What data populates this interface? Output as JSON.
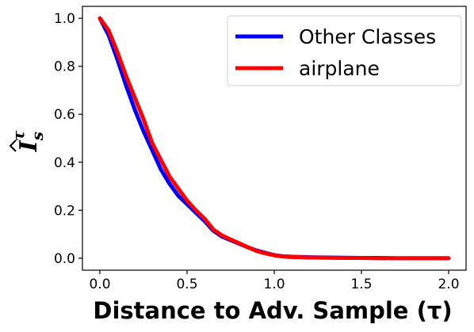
{
  "chart_data": {
    "type": "line",
    "xlabel": "Distance to Adv. Sample (τ)",
    "ylabel": "I",
    "ylabel_sub": "s",
    "ylabel_sup": "τ",
    "xlim": [
      -0.1,
      2.1
    ],
    "ylim": [
      -0.05,
      1.05
    ],
    "x_ticks": [
      "0.0",
      "0.5",
      "1.0",
      "1.5",
      "2.0"
    ],
    "y_ticks": [
      "0.0",
      "0.2",
      "0.4",
      "0.6",
      "0.8",
      "1.0"
    ],
    "grid": false,
    "legend_placement": "top-right",
    "series": [
      {
        "name": "Other Classes",
        "color": "#0000ff",
        "x": [
          0.0,
          0.05,
          0.1,
          0.15,
          0.2,
          0.25,
          0.3,
          0.35,
          0.4,
          0.45,
          0.5,
          0.55,
          0.6,
          0.65,
          0.7,
          0.75,
          0.8,
          0.85,
          0.9,
          0.95,
          1.0,
          1.05,
          1.1,
          1.2,
          1.3,
          1.4,
          1.5,
          1.6,
          1.7,
          1.8,
          1.9,
          2.0
        ],
        "values": [
          1.0,
          0.93,
          0.83,
          0.72,
          0.62,
          0.53,
          0.45,
          0.37,
          0.31,
          0.26,
          0.225,
          0.19,
          0.155,
          0.115,
          0.09,
          0.075,
          0.06,
          0.045,
          0.032,
          0.022,
          0.013,
          0.008,
          0.006,
          0.004,
          0.003,
          0.002,
          0.001,
          0.001,
          0.0,
          0.0,
          0.0,
          0.0
        ]
      },
      {
        "name": "airplane",
        "color": "#ff0000",
        "x": [
          0.0,
          0.05,
          0.1,
          0.15,
          0.2,
          0.25,
          0.3,
          0.35,
          0.4,
          0.45,
          0.5,
          0.55,
          0.6,
          0.65,
          0.7,
          0.75,
          0.8,
          0.85,
          0.9,
          0.95,
          1.0,
          1.05,
          1.1,
          1.2,
          1.3,
          1.4,
          1.5,
          1.6,
          1.7,
          1.8,
          1.9,
          2.0
        ],
        "values": [
          1.0,
          0.95,
          0.86,
          0.76,
          0.67,
          0.58,
          0.48,
          0.41,
          0.34,
          0.29,
          0.24,
          0.2,
          0.165,
          0.12,
          0.095,
          0.078,
          0.062,
          0.045,
          0.03,
          0.02,
          0.012,
          0.007,
          0.005,
          0.003,
          0.002,
          0.001,
          0.001,
          0.0,
          0.0,
          0.0,
          0.0,
          0.0
        ]
      }
    ]
  }
}
